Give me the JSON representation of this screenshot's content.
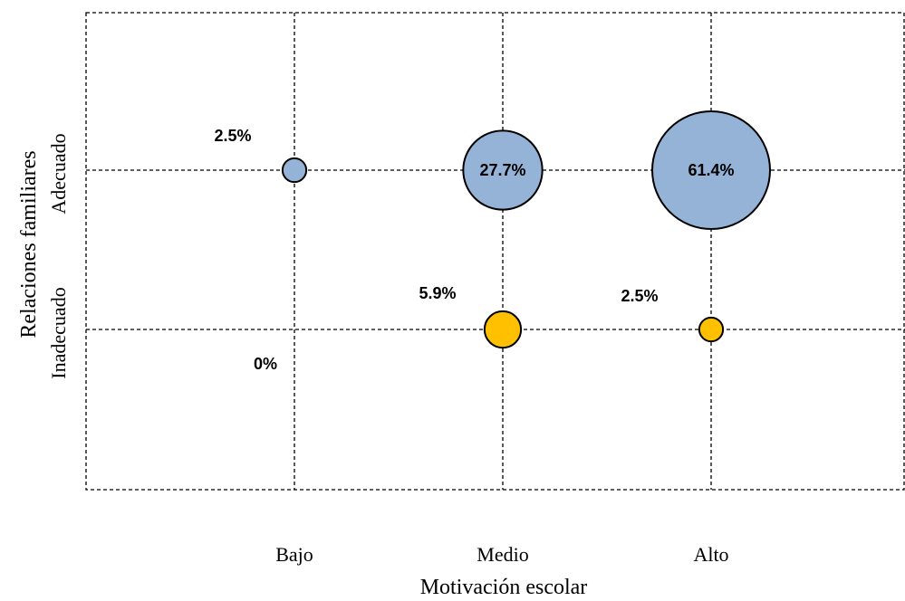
{
  "chart_data": {
    "type": "scatter",
    "title": "",
    "xlabel": "Motivación escolar",
    "ylabel": "Relaciones familiares",
    "x_categories": [
      "Bajo",
      "Medio",
      "Alto"
    ],
    "y_categories": [
      "Inadecuado",
      "Adecuado"
    ],
    "grid": true,
    "series": [
      {
        "color": "#95b3d7",
        "points": [
          {
            "x": "Bajo",
            "y": "Adecuado",
            "value": 2.5,
            "label": "2.5%"
          },
          {
            "x": "Medio",
            "y": "Adecuado",
            "value": 27.7,
            "label": "27.7%"
          },
          {
            "x": "Alto",
            "y": "Adecuado",
            "value": 61.4,
            "label": "61.4%"
          }
        ]
      },
      {
        "color": "#ffc000",
        "points": [
          {
            "x": "Bajo",
            "y": "Inadecuado",
            "value": 0,
            "label": "0%"
          },
          {
            "x": "Medio",
            "y": "Inadecuado",
            "value": 5.9,
            "label": "5.9%"
          },
          {
            "x": "Alto",
            "y": "Inadecuado",
            "value": 2.5,
            "label": "2.5%"
          }
        ]
      }
    ]
  }
}
